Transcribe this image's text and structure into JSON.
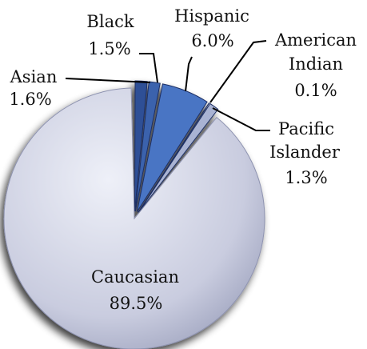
{
  "chart_data": {
    "type": "pie",
    "title": "",
    "slices": [
      {
        "name": "Caucasian",
        "value": 89.5,
        "label": "89.5%",
        "color": "#c9ccdf"
      },
      {
        "name": "Asian",
        "value": 1.6,
        "label": "1.6%",
        "color": "#2f4f96"
      },
      {
        "name": "Black",
        "value": 1.5,
        "label": "1.5%",
        "color": "#3b62ad"
      },
      {
        "name": "Hispanic",
        "value": 6.0,
        "label": "6.0%",
        "color": "#4a74c4"
      },
      {
        "name": "American Indian",
        "value": 0.1,
        "label": "0.1%",
        "color": "#6f8fd4"
      },
      {
        "name": "Pacific Islander",
        "value": 1.3,
        "label": "1.3%",
        "color": "#a9b3d3"
      }
    ],
    "category_labels": {
      "caucasian": "Caucasian",
      "asian": "Asian",
      "black": "Black",
      "hispanic": "Hispanic",
      "american_indian_line1": "American",
      "american_indian_line2": "Indian",
      "pacific_islander_line1": "Pacific",
      "pacific_islander_line2": "Islander"
    },
    "value_labels": {
      "caucasian": "89.5%",
      "asian": "1.6%",
      "black": "1.5%",
      "hispanic": "6.0%",
      "american_indian": "0.1%",
      "pacific_islander": "1.3%"
    },
    "exploded": true,
    "legend": "none"
  }
}
